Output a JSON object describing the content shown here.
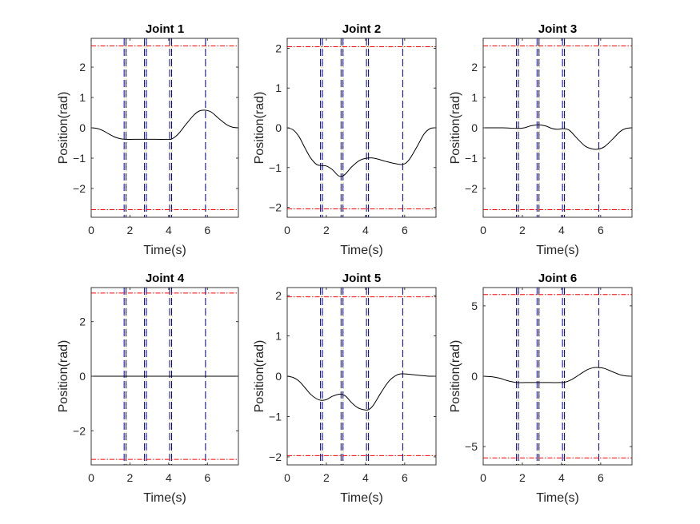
{
  "chart_data": [
    {
      "type": "line",
      "title": "Joint 1",
      "xlabel": "Time(s)",
      "ylabel": "Position(rad)",
      "xlim": [
        0,
        7.6
      ],
      "ylim": [
        -2.95,
        2.95
      ],
      "xticks": [
        0,
        2,
        4,
        6
      ],
      "yticks": [
        -2,
        -1,
        0,
        1,
        2
      ],
      "limits": [
        -2.7,
        2.7
      ],
      "waypoint_times": [
        1.7,
        1.8,
        2.75,
        2.85,
        4.05,
        4.15,
        5.9
      ],
      "series": [
        {
          "name": "position",
          "x": [
            0,
            0.3,
            0.6,
            0.9,
            1.2,
            1.5,
            1.75,
            2.2,
            2.8,
            3.4,
            3.9,
            4.15,
            4.5,
            4.9,
            5.3,
            5.6,
            5.9,
            6.2,
            6.6,
            7.0,
            7.3,
            7.6
          ],
          "y": [
            0,
            -0.02,
            -0.09,
            -0.2,
            -0.3,
            -0.36,
            -0.38,
            -0.38,
            -0.38,
            -0.38,
            -0.38,
            -0.37,
            -0.2,
            0.12,
            0.42,
            0.56,
            0.58,
            0.52,
            0.3,
            0.1,
            0.02,
            0
          ]
        }
      ]
    },
    {
      "type": "line",
      "title": "Joint 2",
      "xlabel": "Time(s)",
      "ylabel": "Position(rad)",
      "xlim": [
        0,
        7.6
      ],
      "ylim": [
        -2.25,
        2.25
      ],
      "xticks": [
        0,
        2,
        4,
        6
      ],
      "yticks": [
        -2,
        -1,
        0,
        1,
        2
      ],
      "limits": [
        -2.04,
        2.04
      ],
      "waypoint_times": [
        1.7,
        1.8,
        2.75,
        2.85,
        4.05,
        4.15,
        5.9
      ],
      "series": [
        {
          "name": "position",
          "x": [
            0,
            0.3,
            0.6,
            0.9,
            1.2,
            1.5,
            1.75,
            2.0,
            2.3,
            2.6,
            2.8,
            3.0,
            3.3,
            3.7,
            4.1,
            4.5,
            5.0,
            5.5,
            5.9,
            6.2,
            6.6,
            7.0,
            7.3,
            7.6
          ],
          "y": [
            0,
            -0.05,
            -0.22,
            -0.5,
            -0.76,
            -0.92,
            -0.95,
            -0.96,
            -1.05,
            -1.2,
            -1.22,
            -1.15,
            -0.98,
            -0.82,
            -0.76,
            -0.77,
            -0.84,
            -0.9,
            -0.92,
            -0.82,
            -0.5,
            -0.15,
            -0.02,
            0
          ]
        }
      ]
    },
    {
      "type": "line",
      "title": "Joint 3",
      "xlabel": "Time(s)",
      "ylabel": "Position(rad)",
      "xlim": [
        0,
        7.6
      ],
      "ylim": [
        -2.95,
        2.95
      ],
      "xticks": [
        0,
        2,
        4,
        6
      ],
      "yticks": [
        -2,
        -1,
        0,
        1,
        2
      ],
      "limits": [
        -2.7,
        2.7
      ],
      "waypoint_times": [
        1.7,
        1.8,
        2.75,
        2.85,
        4.05,
        4.15,
        5.9
      ],
      "series": [
        {
          "name": "position",
          "x": [
            0,
            1.0,
            1.75,
            2.1,
            2.4,
            2.8,
            3.2,
            3.5,
            3.8,
            4.1,
            4.4,
            4.8,
            5.2,
            5.6,
            5.9,
            6.2,
            6.6,
            7.0,
            7.3,
            7.6
          ],
          "y": [
            0,
            0,
            -0.02,
            0,
            0.06,
            0.1,
            0.06,
            -0.02,
            -0.05,
            -0.03,
            -0.08,
            -0.35,
            -0.6,
            -0.7,
            -0.7,
            -0.62,
            -0.38,
            -0.12,
            -0.02,
            0
          ]
        }
      ]
    },
    {
      "type": "line",
      "title": "Joint 4",
      "xlabel": "Time(s)",
      "ylabel": "Position(rad)",
      "xlim": [
        0,
        7.6
      ],
      "ylim": [
        -3.25,
        3.25
      ],
      "xticks": [
        0,
        2,
        4,
        6
      ],
      "yticks": [
        -2,
        0,
        2
      ],
      "limits": [
        -3.05,
        3.05
      ],
      "waypoint_times": [
        1.7,
        1.8,
        2.75,
        2.85,
        4.05,
        4.15,
        5.9
      ],
      "series": [
        {
          "name": "position",
          "x": [
            0,
            7.6
          ],
          "y": [
            0,
            0
          ]
        }
      ]
    },
    {
      "type": "line",
      "title": "Joint 5",
      "xlabel": "Time(s)",
      "ylabel": "Position(rad)",
      "xlim": [
        0,
        7.6
      ],
      "ylim": [
        -2.2,
        2.2
      ],
      "xticks": [
        0,
        2,
        4,
        6
      ],
      "yticks": [
        -2,
        -1,
        0,
        1,
        2
      ],
      "limits": [
        -1.97,
        1.97
      ],
      "waypoint_times": [
        1.7,
        1.8,
        2.75,
        2.85,
        4.05,
        4.15,
        5.9
      ],
      "series": [
        {
          "name": "position",
          "x": [
            0,
            0.3,
            0.6,
            0.9,
            1.2,
            1.5,
            1.75,
            2.0,
            2.3,
            2.6,
            2.8,
            3.0,
            3.3,
            3.6,
            3.9,
            4.15,
            4.4,
            4.8,
            5.2,
            5.6,
            5.9,
            6.2,
            6.6,
            7.0,
            7.3,
            7.6
          ],
          "y": [
            0,
            -0.03,
            -0.12,
            -0.28,
            -0.45,
            -0.56,
            -0.6,
            -0.58,
            -0.5,
            -0.45,
            -0.45,
            -0.5,
            -0.66,
            -0.78,
            -0.83,
            -0.83,
            -0.72,
            -0.4,
            -0.12,
            0.03,
            0.06,
            0.05,
            0.03,
            0.01,
            0,
            0
          ]
        }
      ]
    },
    {
      "type": "line",
      "title": "Joint 6",
      "xlabel": "Time(s)",
      "ylabel": "Position(rad)",
      "xlim": [
        0,
        7.6
      ],
      "ylim": [
        -6.3,
        6.3
      ],
      "xticks": [
        0,
        2,
        4,
        6
      ],
      "yticks": [
        -5,
        0,
        5
      ],
      "limits": [
        -5.8,
        5.8
      ],
      "waypoint_times": [
        1.7,
        1.8,
        2.75,
        2.85,
        4.05,
        4.15,
        5.9
      ],
      "series": [
        {
          "name": "position",
          "x": [
            0,
            0.4,
            0.8,
            1.2,
            1.5,
            1.75,
            2.2,
            2.8,
            3.4,
            3.9,
            4.15,
            4.5,
            4.9,
            5.3,
            5.6,
            5.9,
            6.2,
            6.6,
            7.0,
            7.3,
            7.6
          ],
          "y": [
            0,
            -0.03,
            -0.13,
            -0.3,
            -0.4,
            -0.45,
            -0.45,
            -0.45,
            -0.45,
            -0.45,
            -0.43,
            -0.25,
            0.1,
            0.45,
            0.6,
            0.62,
            0.55,
            0.32,
            0.1,
            0.02,
            0
          ]
        }
      ]
    }
  ],
  "colors": {
    "line": "#000000",
    "limit_line": "#ff0000",
    "waypoint_line": "#0000aa",
    "waypoint_shadow": "#e6e6a0",
    "axis": "#262626"
  }
}
